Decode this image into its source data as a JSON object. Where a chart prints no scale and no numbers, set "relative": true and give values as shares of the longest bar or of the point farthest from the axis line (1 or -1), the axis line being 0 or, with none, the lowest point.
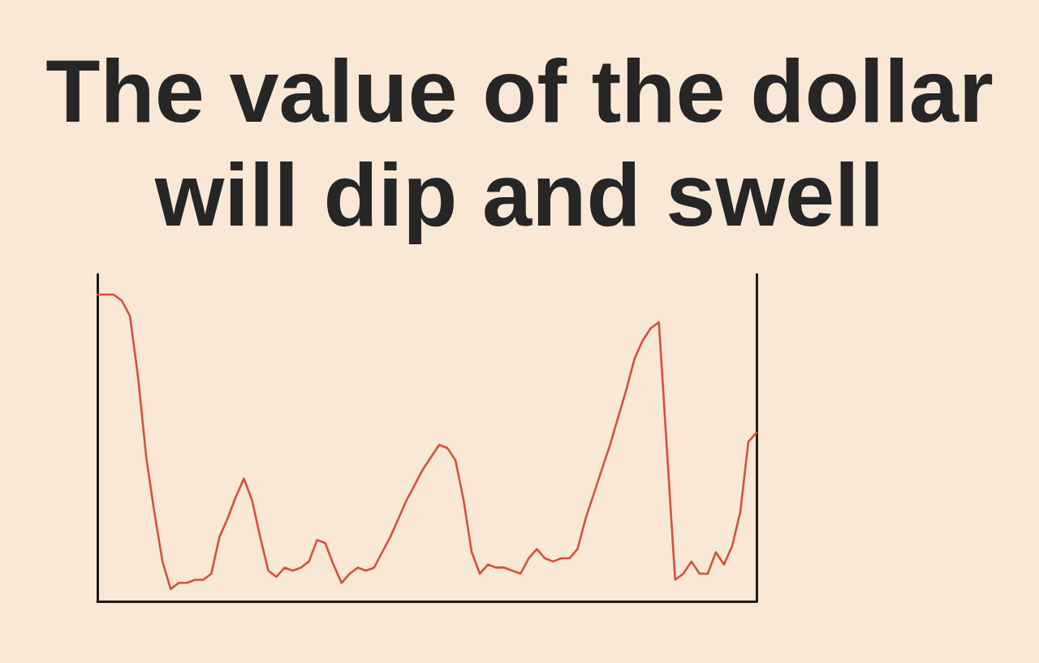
{
  "chart_data": {
    "type": "line",
    "title": "The value of the dollar\nwill dip and swell",
    "categories": [
      null,
      null,
      null,
      null,
      null,
      null,
      null,
      null,
      null,
      null,
      null,
      null,
      null,
      null,
      null,
      null,
      null,
      null,
      null,
      null,
      null,
      null,
      null,
      null,
      null,
      null,
      null,
      null,
      null,
      null,
      null,
      null,
      null,
      null,
      null,
      null,
      null,
      null,
      null,
      null,
      null,
      null,
      null,
      null,
      null,
      null,
      null,
      null,
      null,
      null,
      null,
      null,
      null,
      null,
      null,
      null,
      null,
      null,
      null,
      null,
      null,
      null,
      null,
      null,
      null,
      null,
      null,
      null,
      null,
      null,
      null,
      null,
      null,
      null,
      null,
      null,
      null,
      null,
      null,
      null,
      null,
      null
    ],
    "series": [
      {
        "color": "#d4503f",
        "values": [
          1.0,
          1.0,
          1.0,
          0.98,
          0.93,
          0.73,
          0.47,
          0.29,
          0.13,
          0.04,
          0.06,
          0.06,
          0.07,
          0.07,
          0.09,
          0.21,
          0.27,
          0.34,
          0.4,
          0.33,
          0.21,
          0.1,
          0.08,
          0.11,
          0.1,
          0.11,
          0.13,
          0.2,
          0.19,
          0.12,
          0.06,
          0.09,
          0.11,
          0.1,
          0.11,
          0.16,
          0.21,
          0.27,
          0.33,
          0.38,
          0.43,
          0.47,
          0.51,
          0.5,
          0.46,
          0.33,
          0.16,
          0.09,
          0.12,
          0.11,
          0.11,
          0.1,
          0.09,
          0.14,
          0.17,
          0.14,
          0.13,
          0.14,
          0.14,
          0.17,
          0.27,
          0.35,
          0.43,
          0.51,
          0.6,
          0.69,
          0.79,
          0.85,
          0.89,
          0.91,
          0.49,
          0.07,
          0.09,
          0.13,
          0.09,
          0.09,
          0.16,
          0.12,
          0.18,
          0.29,
          0.52,
          0.55
        ]
      }
    ],
    "relative": true,
    "marker": "none"
  }
}
